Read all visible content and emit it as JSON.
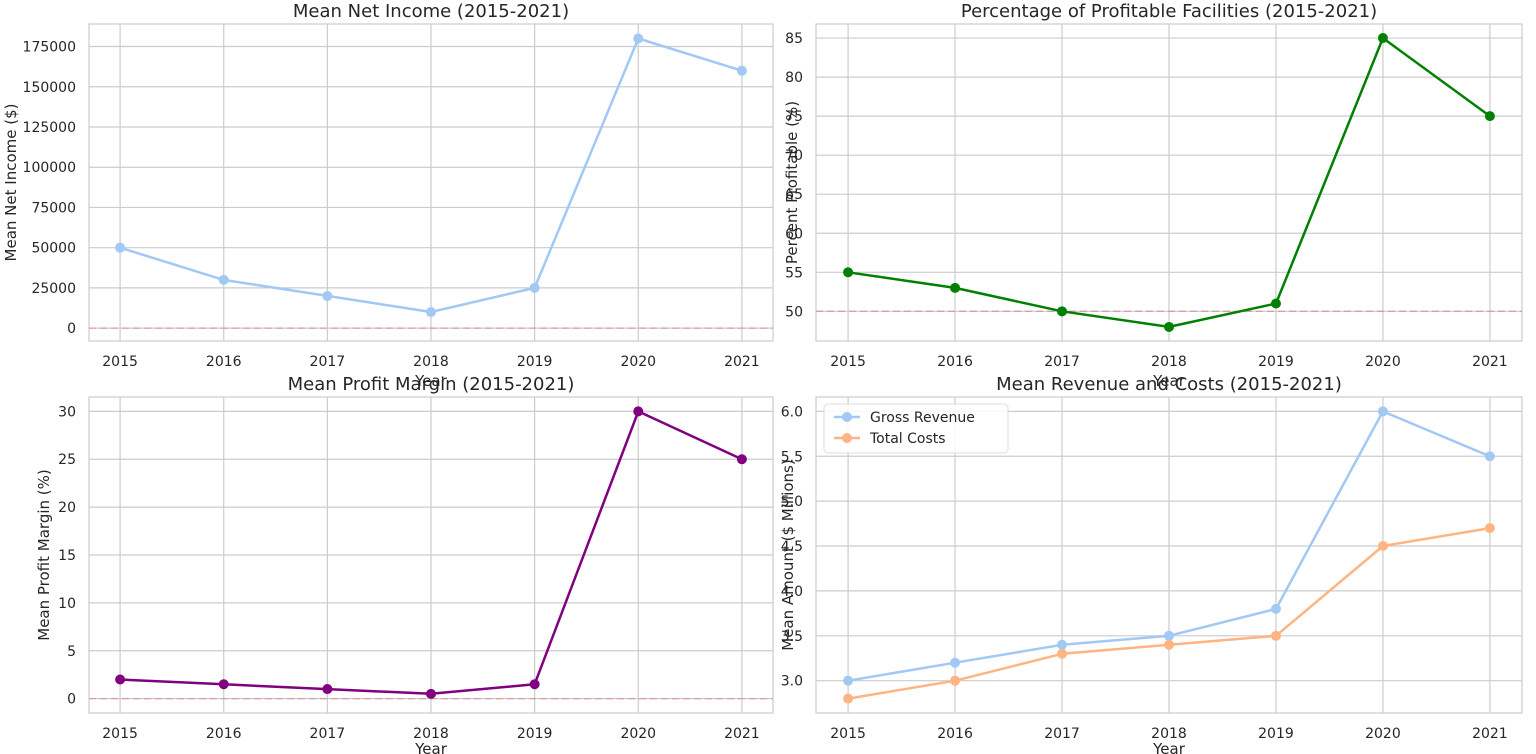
{
  "chart_data": [
    {
      "type": "line",
      "title": "Mean Net Income (2015-2021)",
      "xlabel": "Year",
      "ylabel": "Mean Net Income ($)",
      "x": [
        "2015",
        "2016",
        "2017",
        "2018",
        "2019",
        "2020",
        "2021"
      ],
      "xlim": [
        2014.7,
        2021.3
      ],
      "ylim": [
        -8000,
        189000
      ],
      "yticks": [
        0,
        25000,
        50000,
        75000,
        100000,
        125000,
        150000,
        175000
      ],
      "reference_line": 0,
      "grid": true,
      "series": [
        {
          "values": [
            50000,
            30000,
            20000,
            10000,
            25000,
            180000,
            160000
          ],
          "color": "#a1c9f4"
        }
      ]
    },
    {
      "type": "line",
      "title": "Percentage of Profitable Facilities (2015-2021)",
      "xlabel": "Year",
      "ylabel": "Percent Profitable (%)",
      "x": [
        "2015",
        "2016",
        "2017",
        "2018",
        "2019",
        "2020",
        "2021"
      ],
      "xlim": [
        2014.7,
        2021.3
      ],
      "ylim": [
        46.2,
        86.8
      ],
      "yticks": [
        50,
        55,
        60,
        65,
        70,
        75,
        80,
        85
      ],
      "reference_line": 50,
      "grid": true,
      "series": [
        {
          "values": [
            55,
            53,
            50,
            48,
            51,
            85,
            75
          ],
          "color": "#008000"
        }
      ]
    },
    {
      "type": "line",
      "title": "Mean Profit Margin (2015-2021)",
      "xlabel": "Year",
      "ylabel": "Mean Profit Margin (%)",
      "x": [
        "2015",
        "2016",
        "2017",
        "2018",
        "2019",
        "2020",
        "2021"
      ],
      "xlim": [
        2014.7,
        2021.3
      ],
      "ylim": [
        -1.5,
        31.5
      ],
      "yticks": [
        0,
        5,
        10,
        15,
        20,
        25,
        30
      ],
      "reference_line": 0,
      "grid": true,
      "series": [
        {
          "values": [
            2,
            1.5,
            1,
            0.5,
            1.5,
            30,
            25
          ],
          "color": "#800080"
        }
      ]
    },
    {
      "type": "line",
      "title": "Mean Revenue and Costs (2015-2021)",
      "xlabel": "Year",
      "ylabel": "Mean Amount ($ Millions)",
      "x": [
        "2015",
        "2016",
        "2017",
        "2018",
        "2019",
        "2020",
        "2021"
      ],
      "xlim": [
        2014.7,
        2021.3
      ],
      "ylim": [
        2.64,
        6.16
      ],
      "yticks": [
        3.0,
        3.5,
        4.0,
        4.5,
        5.0,
        5.5,
        6.0
      ],
      "grid": true,
      "legend": "top-left",
      "series": [
        {
          "name": "Gross Revenue",
          "values": [
            3.0,
            3.2,
            3.4,
            3.5,
            3.8,
            6.0,
            5.5
          ],
          "color": "#a1c9f4"
        },
        {
          "name": "Total Costs",
          "values": [
            2.8,
            3.0,
            3.3,
            3.4,
            3.5,
            4.5,
            4.7
          ],
          "color": "#ffb482"
        }
      ]
    }
  ]
}
